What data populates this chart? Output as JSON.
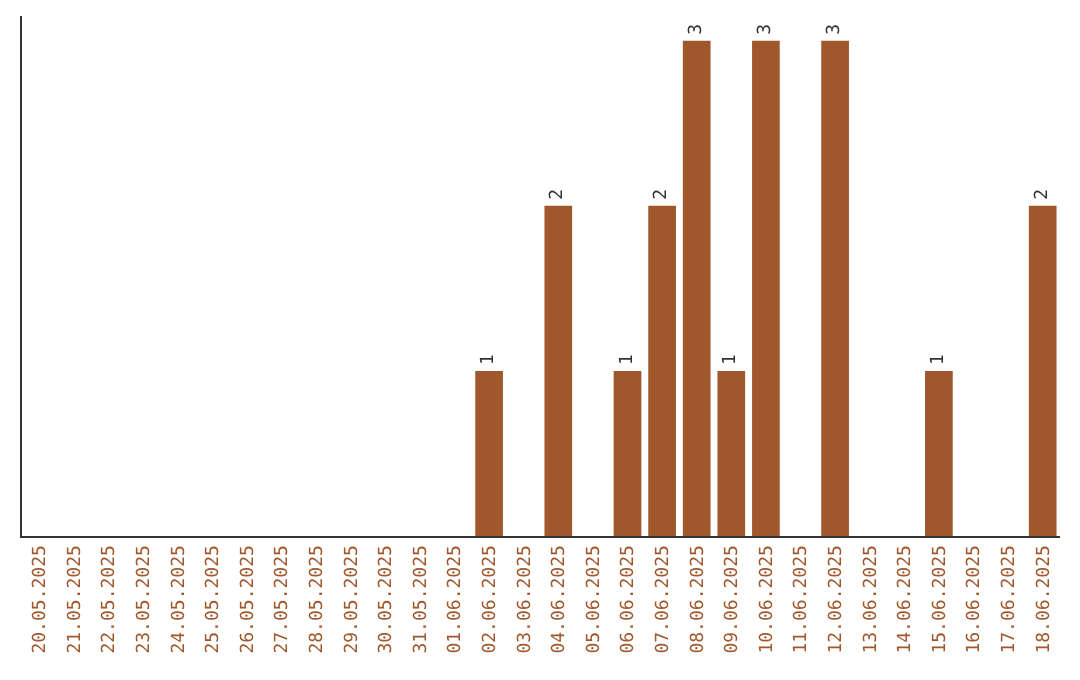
{
  "chart_data": {
    "type": "bar",
    "categories": [
      "20.05.2025",
      "21.05.2025",
      "22.05.2025",
      "23.05.2025",
      "24.05.2025",
      "25.05.2025",
      "26.05.2025",
      "27.05.2025",
      "28.05.2025",
      "29.05.2025",
      "30.05.2025",
      "31.05.2025",
      "01.06.2025",
      "02.06.2025",
      "03.06.2025",
      "04.06.2025",
      "05.06.2025",
      "06.06.2025",
      "07.06.2025",
      "08.06.2025",
      "09.06.2025",
      "10.06.2025",
      "11.06.2025",
      "12.06.2025",
      "13.06.2025",
      "14.06.2025",
      "15.06.2025",
      "16.06.2025",
      "17.06.2025",
      "18.06.2025"
    ],
    "values": [
      null,
      null,
      null,
      null,
      null,
      null,
      null,
      null,
      null,
      null,
      null,
      null,
      null,
      1,
      null,
      2,
      null,
      1,
      2,
      3,
      1,
      3,
      null,
      3,
      null,
      null,
      1,
      null,
      null,
      2
    ],
    "data_labels": true,
    "color": "#a0572b",
    "ylim": [
      0,
      3.15
    ],
    "tick_labels": "x"
  }
}
